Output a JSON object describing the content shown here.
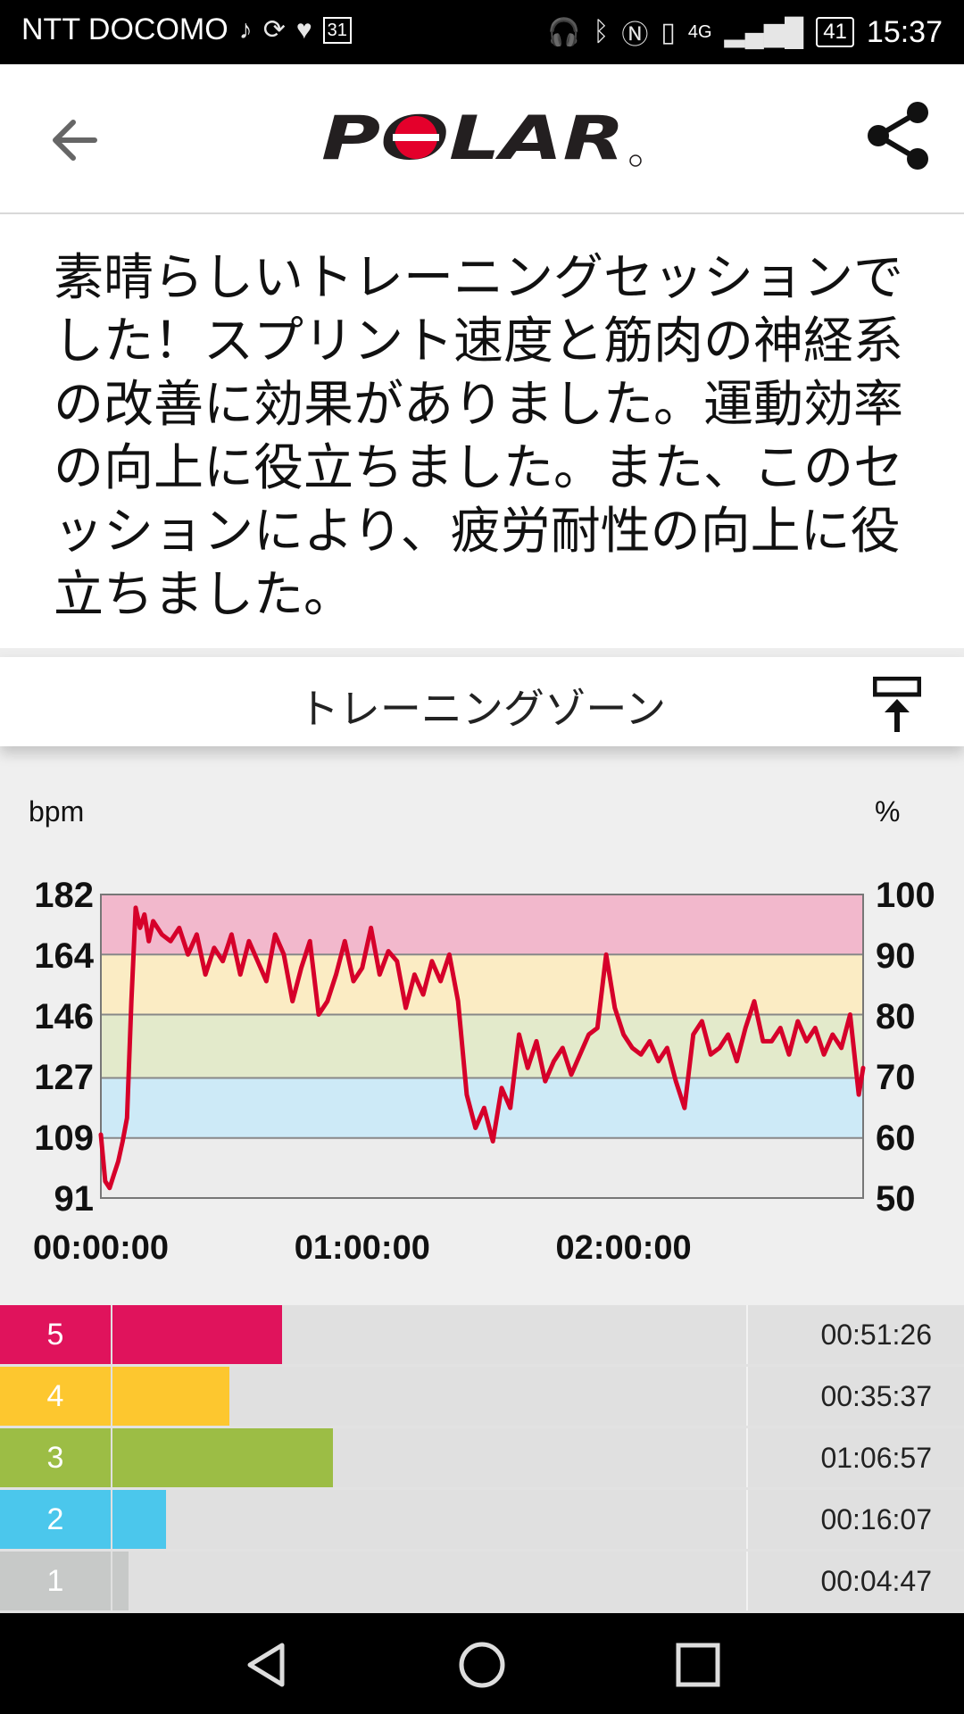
{
  "status_bar": {
    "carrier": "NTT DOCOMO",
    "calendar_day": "31",
    "network": "4G",
    "battery": "41",
    "time": "15:37"
  },
  "header": {
    "logo_text": "POLAR"
  },
  "message": "素晴らしいトレーニングセッションでした！スプリント速度と筋肉の神経系の改善に効果がありました。運動効率の向上に役立ちました。また、このセッションにより、疲労耐性の向上に役立ちました。",
  "section": {
    "title": "トレーニングゾーン"
  },
  "colors": {
    "zone5": "#e0135c",
    "zone4": "#fdc72f",
    "zone3": "#9cbd45",
    "zone2": "#4bc7ec",
    "zone1": "#c7c9c8",
    "hr_line": "#d6002a",
    "band5": "#f2b8cc",
    "band4": "#fbecc4",
    "band3": "#e3eacb",
    "band2": "#cdeaf7",
    "band1": "#ececec"
  },
  "chart_data": {
    "type": "line",
    "ylabel": "bpm",
    "y2label": "%",
    "ylim": [
      91,
      182
    ],
    "y_ticks": [
      "182",
      "164",
      "146",
      "127",
      "109",
      "91"
    ],
    "y2_ticks": [
      "100",
      "90",
      "80",
      "70",
      "60",
      "50"
    ],
    "x_ticks": [
      "00:00:00",
      "01:00:00",
      "02:00:00"
    ],
    "x_minutes_range": [
      0,
      175
    ],
    "zone_bounds_bpm": [
      91,
      109,
      127,
      146,
      164,
      182
    ],
    "series": [
      {
        "x": [
          0,
          1,
          2,
          3,
          4,
          5,
          6,
          7,
          8,
          9,
          10,
          11,
          12,
          14,
          16,
          18,
          20,
          22,
          24,
          26,
          28,
          30,
          32,
          34,
          36,
          38,
          40,
          42,
          44,
          46,
          48,
          50,
          52,
          54,
          56,
          58,
          60,
          62,
          64,
          66,
          68,
          70,
          72,
          74,
          76,
          78,
          80,
          82,
          84,
          86,
          88,
          90,
          92,
          94,
          96,
          98,
          100,
          102,
          104,
          106,
          108,
          110,
          112,
          114,
          116,
          118,
          120,
          122,
          124,
          126,
          128,
          130,
          132,
          134,
          136,
          138,
          140,
          142,
          144,
          146,
          148,
          150,
          152,
          154,
          156,
          158,
          160,
          162,
          164,
          166,
          168,
          170,
          172,
          174,
          175
        ],
        "values": [
          110,
          96,
          94,
          98,
          102,
          108,
          115,
          150,
          178,
          172,
          176,
          168,
          174,
          170,
          168,
          172,
          164,
          170,
          158,
          166,
          162,
          170,
          158,
          168,
          162,
          156,
          170,
          164,
          150,
          160,
          168,
          146,
          150,
          158,
          168,
          156,
          160,
          172,
          158,
          165,
          162,
          148,
          158,
          152,
          162,
          156,
          164,
          150,
          122,
          112,
          118,
          108,
          124,
          118,
          140,
          130,
          138,
          126,
          132,
          136,
          128,
          134,
          140,
          142,
          164,
          148,
          140,
          136,
          134,
          138,
          132,
          136,
          126,
          118,
          140,
          144,
          134,
          136,
          140,
          132,
          142,
          150,
          138,
          138,
          142,
          134,
          144,
          138,
          142,
          134,
          140,
          136,
          146,
          122,
          130
        ]
      }
    ]
  },
  "zones": [
    {
      "num": "5",
      "time": "00:51:26",
      "fraction": 0.267
    },
    {
      "num": "4",
      "time": "00:35:37",
      "fraction": 0.185
    },
    {
      "num": "3",
      "time": "01:06:57",
      "fraction": 0.348
    },
    {
      "num": "2",
      "time": "00:16:07",
      "fraction": 0.084
    },
    {
      "num": "1",
      "time": "00:04:47",
      "fraction": 0.025
    }
  ]
}
